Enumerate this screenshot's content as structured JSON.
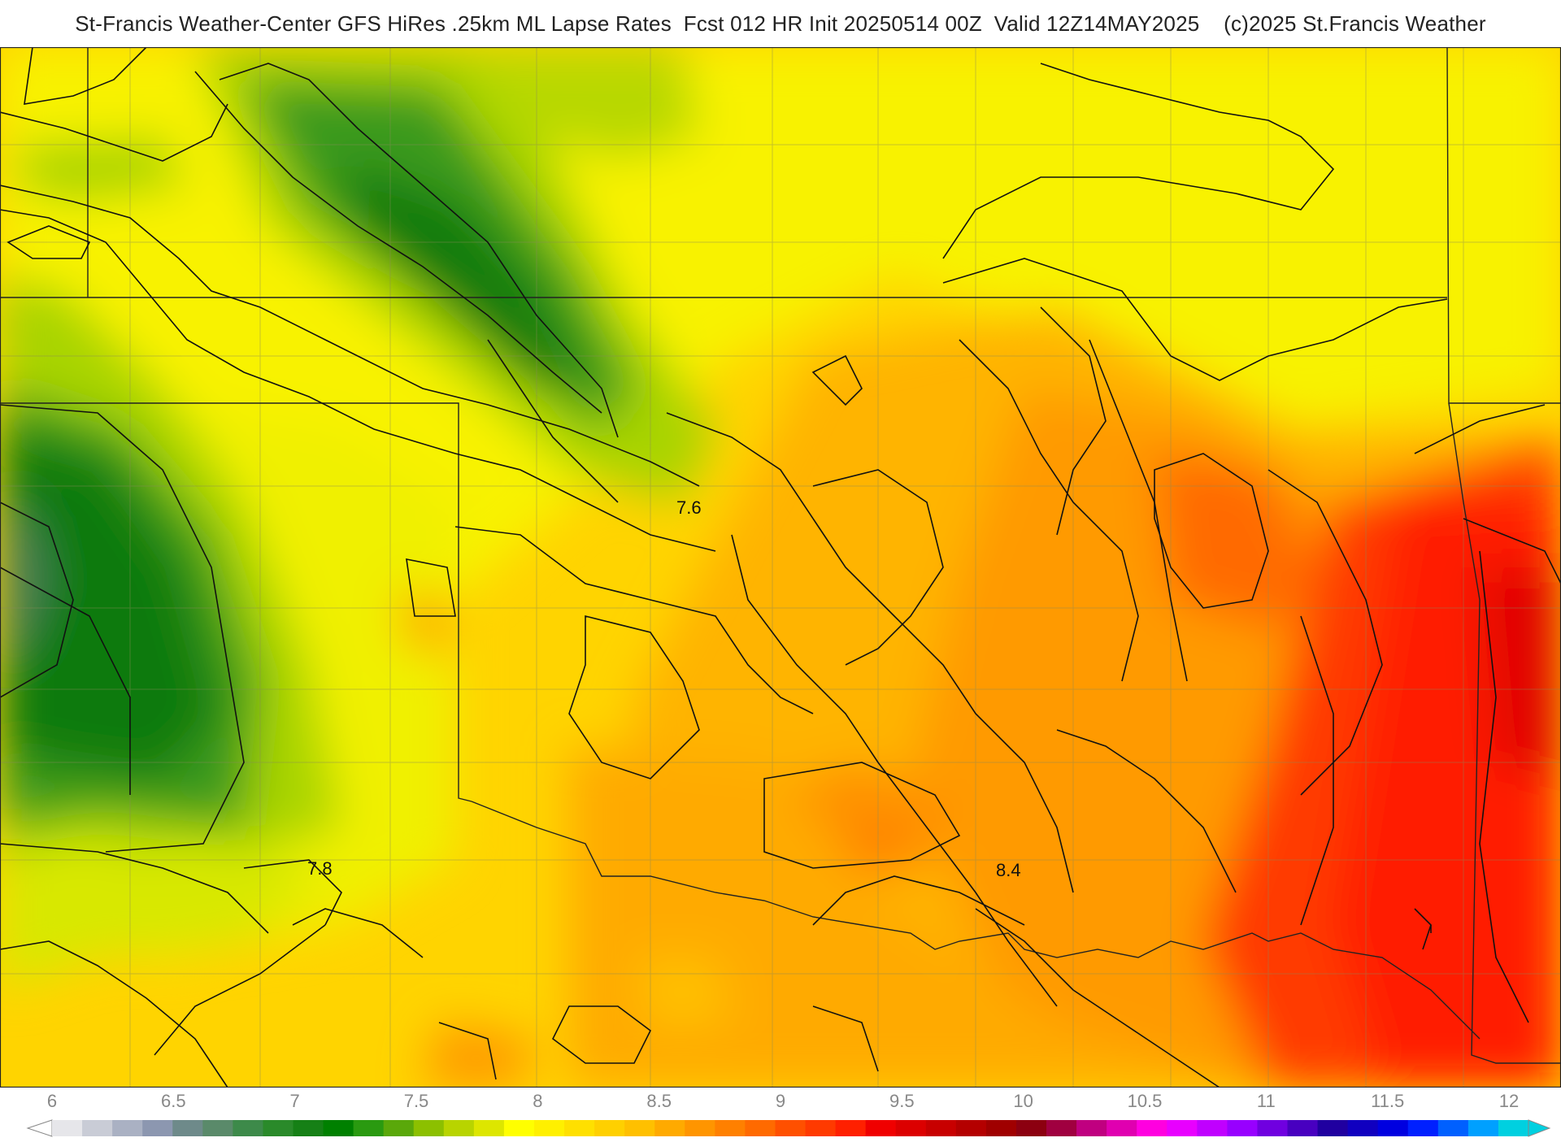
{
  "title": "St-Francis Weather-Center GFS HiRes .25km ML Lapse Rates  Fcst 012 HR Init 20250514 00Z  Valid 12Z14MAY2025    (c)2025 St.Francis Weather",
  "contour_labels": [
    {
      "text": "7.6"
    },
    {
      "text": "7.8"
    },
    {
      "text": "8.4"
    }
  ],
  "colorbar": {
    "ticks": [
      "6",
      "6.5",
      "7",
      "7.5",
      "8",
      "8.5",
      "9",
      "9.5",
      "10",
      "10.5",
      "11",
      "11.5",
      "12"
    ],
    "colors": [
      "#e6e6ea",
      "#c9ccd6",
      "#aab1c3",
      "#8c97b0",
      "#6e8a8a",
      "#5a8a6a",
      "#3d8a4a",
      "#2a8a2a",
      "#168016",
      "#008000",
      "#2a9a10",
      "#5aa80a",
      "#8cc000",
      "#b8d400",
      "#dde600",
      "#ffff00",
      "#fff000",
      "#ffe000",
      "#ffd000",
      "#ffc000",
      "#ffaa00",
      "#ff9500",
      "#ff8000",
      "#ff6a00",
      "#ff5000",
      "#ff3a00",
      "#ff2000",
      "#f00000",
      "#dc0000",
      "#c80000",
      "#b40000",
      "#a00000",
      "#8c0010",
      "#a00040",
      "#c00080",
      "#e000b0",
      "#ff00e0",
      "#e800ff",
      "#c000ff",
      "#9800ff",
      "#7000e0",
      "#4800c0",
      "#2000a0",
      "#1000c0",
      "#0000e0",
      "#0020ff",
      "#0060ff",
      "#00a0ff",
      "#00d0e0"
    ]
  },
  "field_colors": {
    "dark_green": "#0a7a0a",
    "green": "#3a9a1a",
    "light_green": "#a8d400",
    "yellow_green": "#d8e800",
    "yellow": "#f8f200",
    "gold": "#ffd700",
    "orange_light": "#ffb800",
    "orange": "#ff9a00",
    "orange_dark": "#ff6a00",
    "red": "#ff2000",
    "deep_red": "#e00000"
  }
}
